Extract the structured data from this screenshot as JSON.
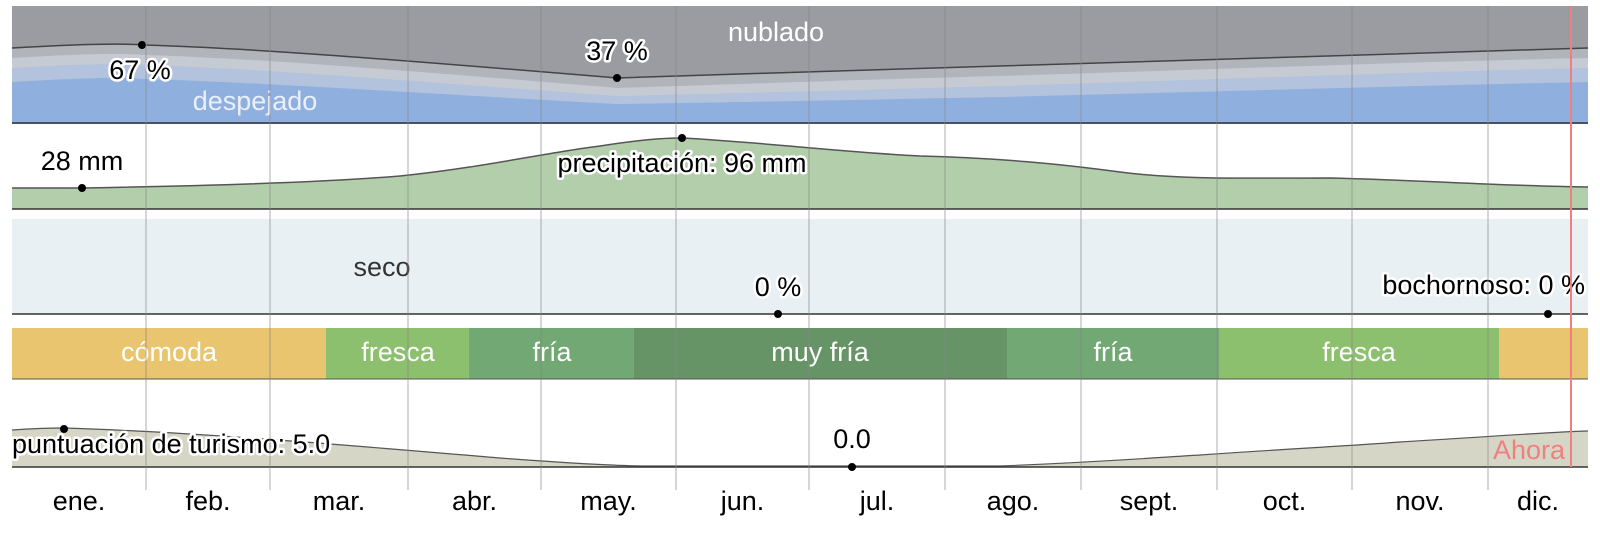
{
  "cloud_cover": {
    "label_cloudy": "nublado",
    "label_clear": "despejado",
    "annotations": [
      "67 %",
      "37 %"
    ]
  },
  "precipitation": {
    "annotations": [
      "28 mm",
      "precipitación: 96 mm"
    ]
  },
  "humidity": {
    "label_dry": "seco",
    "annotations": [
      "0 %",
      "bochornoso: 0 %"
    ]
  },
  "comfort": {
    "bands": [
      "cómoda",
      "fresca",
      "fría",
      "muy fría",
      "fría",
      "fresca"
    ]
  },
  "tourism": {
    "annotations": [
      "puntuación de turismo: 5.0",
      "0.0"
    ]
  },
  "now_label": "Ahora",
  "months": [
    "ene.",
    "feb.",
    "mar.",
    "abr.",
    "may.",
    "jun.",
    "jul.",
    "ago.",
    "sept.",
    "oct.",
    "nov.",
    "dic."
  ]
}
